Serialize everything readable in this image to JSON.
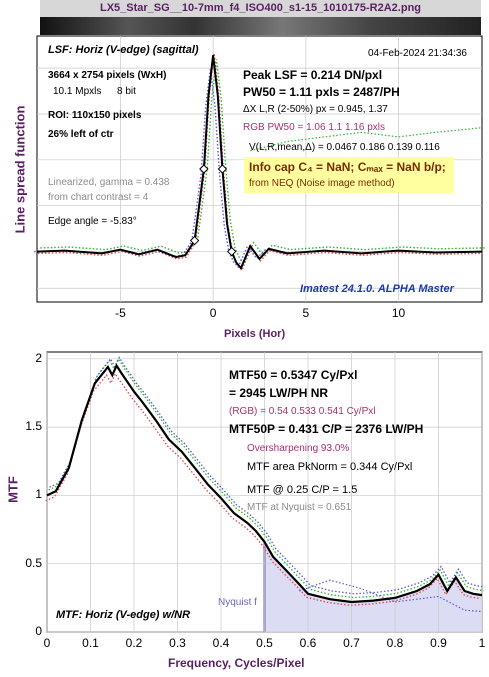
{
  "file_title": "LX5_Star_SG__10-7mm_f4_ISO400_s1-15_1010175-R2A2.png",
  "colors": {
    "plot_bg": "#ffffff",
    "ink": "#000000",
    "axis_label": "#5a1f63",
    "rgb_text": "#a8306e",
    "info_bg": "#ffffa0",
    "shade": "#dcdcf5",
    "nyquist": "#6a6ab8",
    "red": "#e04848",
    "green": "#2fb52f",
    "blue": "#5a5ad8"
  },
  "top": {
    "header": "LSF: Horiz (V-edge) (sagittal)",
    "datetime": "04-Feb-2024 21:34:36",
    "pixels": "3664 x 2754 pixels (WxH)",
    "mpxls": "10.1 Mpxls",
    "bits": "8 bit",
    "roi": "ROI:  110x150 pixels",
    "left_of_ctr": "26% left of ctr",
    "peak_lsf": "Peak LSF =  0.214 DN/pxl",
    "pw50": "PW50 = 1.11 pxls =  2487/PH",
    "delta": "ΔX L,R (2-50%) px = 0.945, 1.37",
    "rgb_pw50": "RGB PW50 =  1.06   1.1   1.16 pxls",
    "vstats": "V(L,R,mean,Δ) = 0.0467  0.186  0.139  0.116",
    "info_cap": "Info cap C₄ = NaN;  Cₘₐₓ = NaN b/p;",
    "from_neq": "from NEQ (Noise image method)",
    "linearized": "Linearized, gamma = 0.438",
    "chart_contrast": "from chart contrast = 4",
    "edge_angle": "Edge angle = -5.83°",
    "imatest": "Imatest 24.1.0. ALPHA Master"
  },
  "bottom": {
    "mtf50": "MTF50 = 0.5347 Cy/Pxl",
    "lwph": "= 2945 LW/PH  NR",
    "rgb": "(RGB) = 0.54  0.533  0.541 Cy/Pxl",
    "mtf50p": "MTF50P = 0.431 C/P = 2376 LW/PH",
    "oversharp": "Oversharpening 93.0%",
    "area": "MTF area PkNorm = 0.344 Cy/Pxl",
    "mtf025": "MTF @ 0.25 C/P = 1.5",
    "nyq": "MTF at Nyquist = 0.651",
    "title": "MTF: Horiz (V-edge) w/NR",
    "nyquist_label": "Nyquist f"
  },
  "chart_data": [
    {
      "type": "line",
      "ylabel": "Line spread function",
      "xlabel": "Pixels (Hor)",
      "xlim": [
        -9.5,
        14.5
      ],
      "ylim": [
        -0.055,
        0.235
      ],
      "x_ticks": [
        -5,
        0,
        5,
        10
      ],
      "grid": true,
      "series": [
        {
          "color": "black",
          "x": [
            -9.5,
            -8,
            -6,
            -5,
            -4,
            -3,
            -2,
            -1.5,
            -1,
            -0.5,
            -0.25,
            0,
            0.25,
            0.5,
            0.75,
            1,
            1.25,
            1.5,
            2,
            2.5,
            3,
            4,
            6,
            8,
            10,
            12,
            14.5
          ],
          "values": [
            0,
            0.001,
            -0.002,
            0.002,
            -0.003,
            0.002,
            -0.006,
            -0.004,
            0.012,
            0.09,
            0.17,
            0.214,
            0.17,
            0.09,
            0.03,
            0,
            -0.012,
            -0.018,
            0.006,
            -0.008,
            0.003,
            -0.002,
            0.001,
            -0.002,
            0.001,
            -0.001,
            0
          ]
        }
      ]
    },
    {
      "type": "line",
      "ylabel": "MTF",
      "xlabel": "Frequency, Cycles/Pixel",
      "xlim": [
        0,
        1
      ],
      "ylim": [
        0,
        2.05
      ],
      "x_ticks": [
        0,
        0.1,
        0.2,
        0.3,
        0.4,
        0.5,
        0.6,
        0.7,
        0.8,
        0.9,
        1
      ],
      "y_ticks": [
        0,
        0.5,
        1,
        1.5,
        2
      ],
      "grid": true,
      "series": [
        {
          "color": "black",
          "x": [
            0,
            0.02,
            0.05,
            0.08,
            0.11,
            0.14,
            0.15,
            0.16,
            0.17,
            0.2,
            0.22,
            0.25,
            0.28,
            0.31,
            0.34,
            0.37,
            0.4,
            0.43,
            0.46,
            0.48,
            0.5,
            0.52,
            0.55,
            0.58,
            0.6,
            0.65,
            0.7,
            0.75,
            0.8,
            0.85,
            0.88,
            0.9,
            0.92,
            0.94,
            0.96,
            0.98,
            1
          ],
          "values": [
            1,
            1.03,
            1.2,
            1.55,
            1.82,
            1.94,
            1.88,
            1.95,
            1.9,
            1.76,
            1.68,
            1.55,
            1.41,
            1.32,
            1.2,
            1.08,
            0.98,
            0.87,
            0.8,
            0.74,
            0.66,
            0.55,
            0.45,
            0.35,
            0.28,
            0.24,
            0.22,
            0.23,
            0.25,
            0.3,
            0.35,
            0.42,
            0.3,
            0.4,
            0.3,
            0.28,
            0.27
          ]
        }
      ]
    }
  ]
}
